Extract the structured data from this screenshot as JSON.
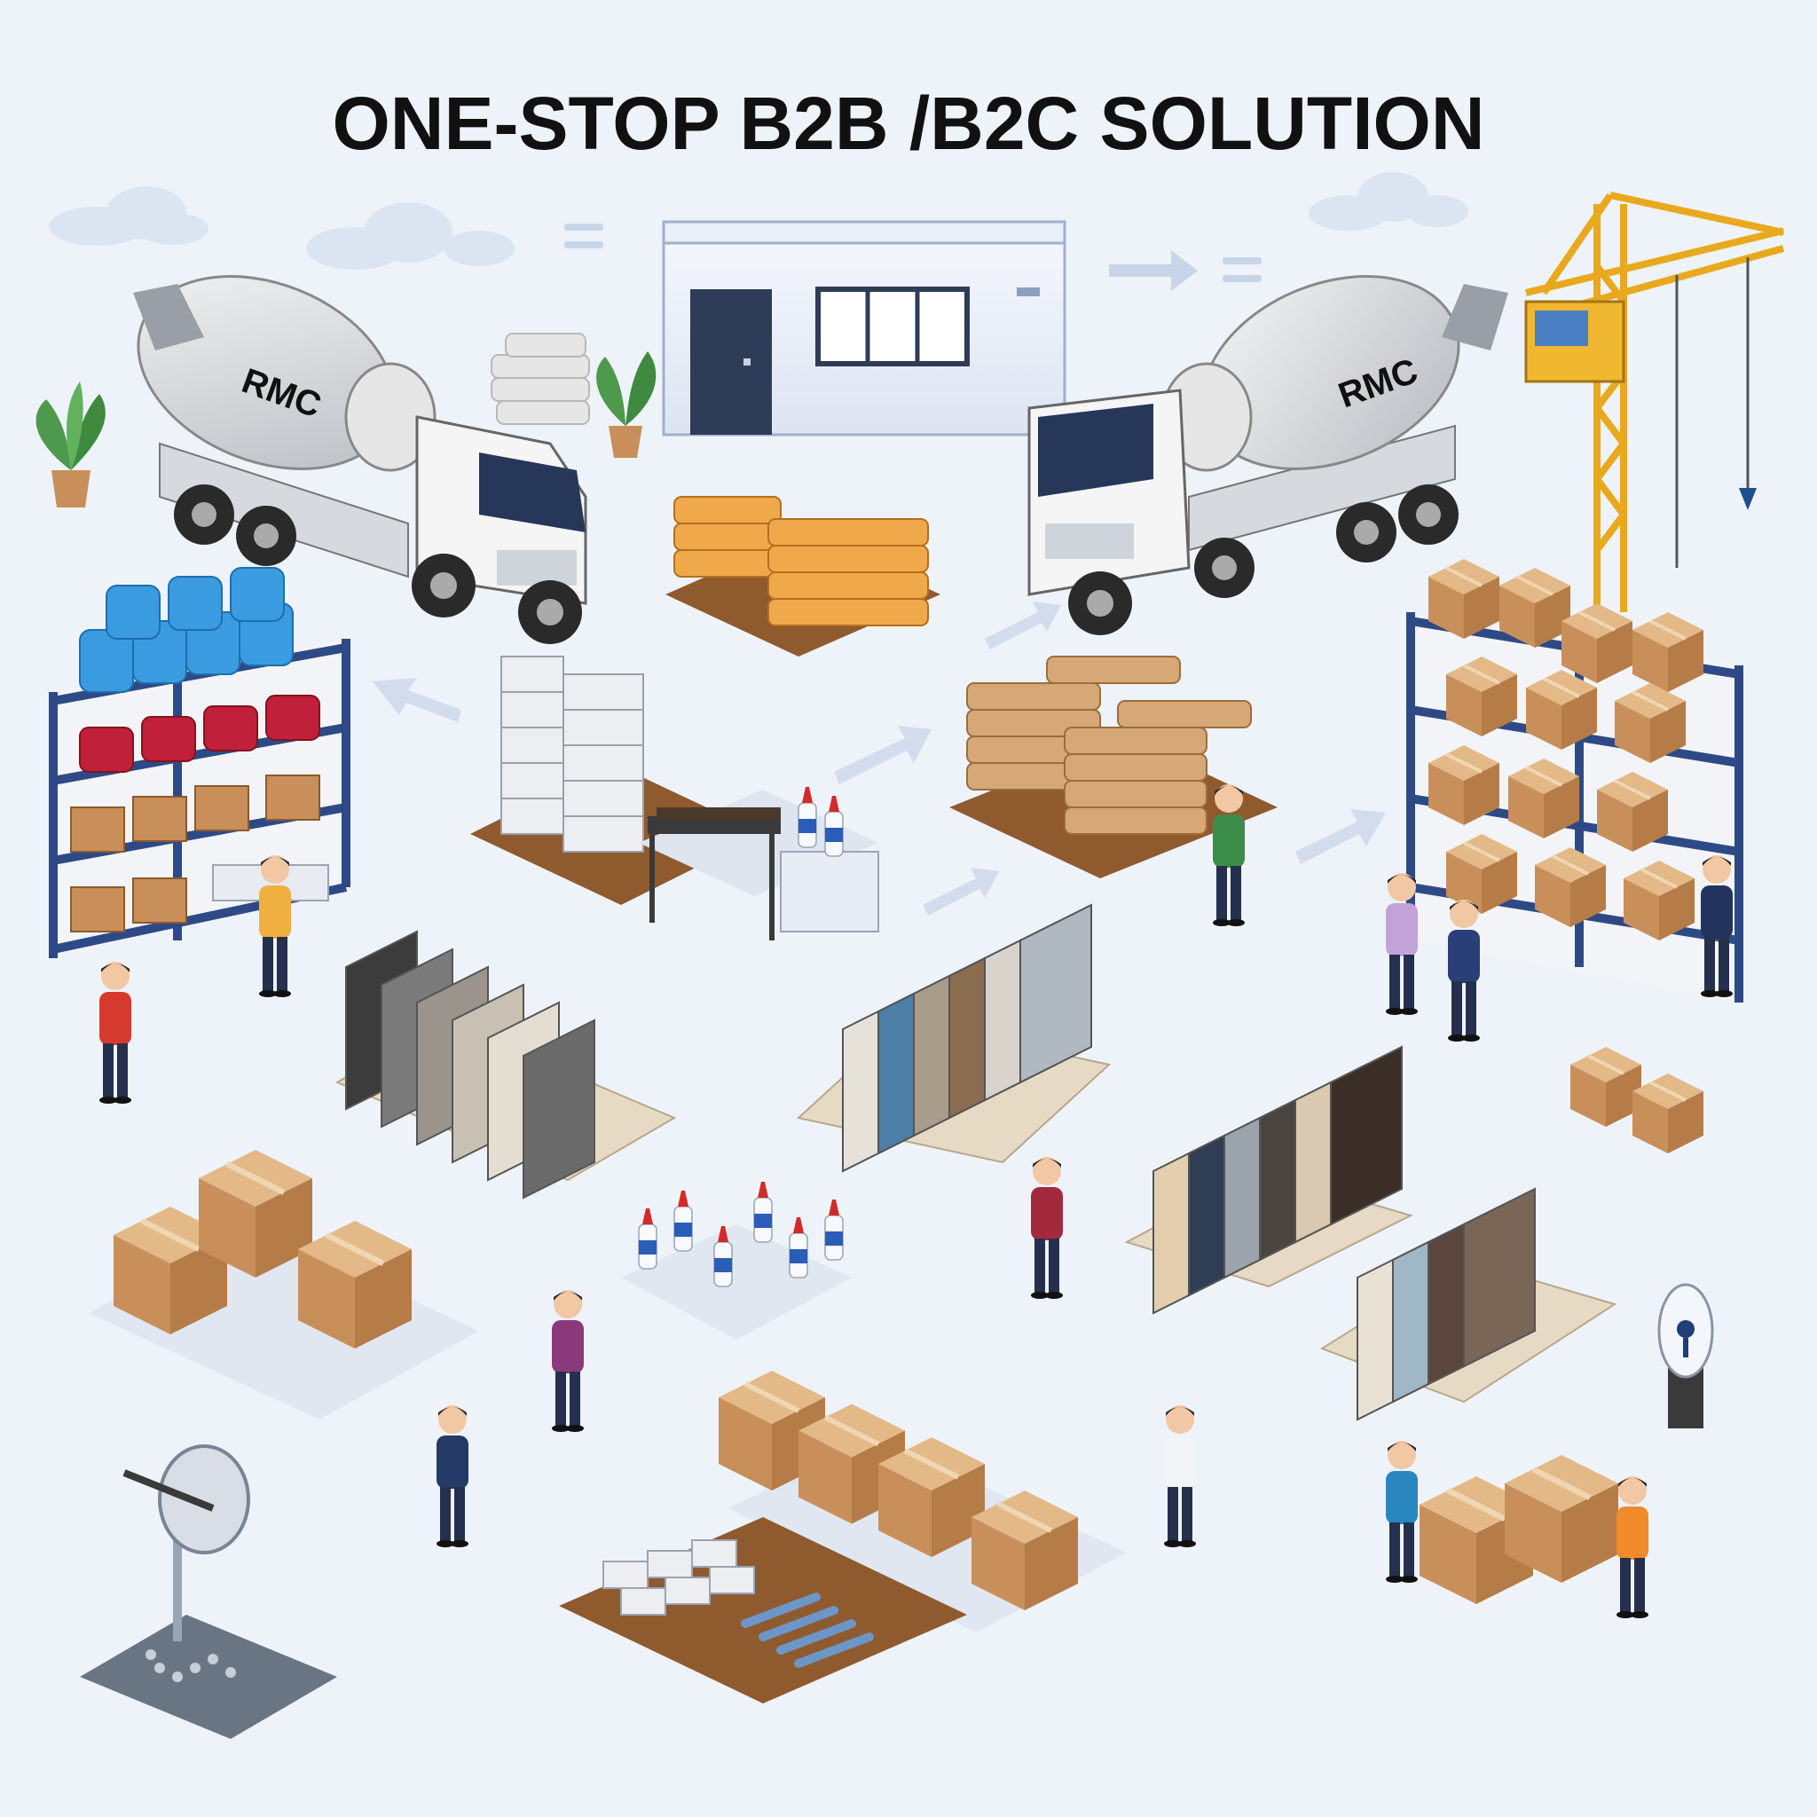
{
  "title": "ONE-STOP B2B /B2C SOLUTION",
  "truck_left_label": "RMC",
  "truck_right_label": "RMC",
  "colors": {
    "background": "#eef3fa",
    "cardboard": "#d7a877",
    "cement_bag": "#f0a94a",
    "rack_frame": "#2e4a86",
    "title_text": "#111111"
  },
  "icons": [
    "cloud-icon",
    "arrow-icon",
    "equals-icon"
  ]
}
